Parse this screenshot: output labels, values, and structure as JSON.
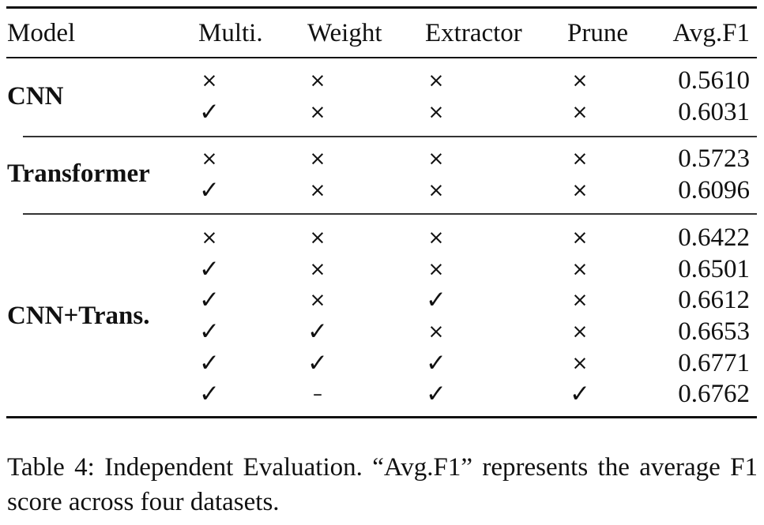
{
  "table": {
    "headers": {
      "model": "Model",
      "multi": "Multi.",
      "weight": "Weight",
      "extractor": "Extractor",
      "prune": "Prune",
      "avg_f1": "Avg.F1"
    },
    "groups": [
      {
        "model": "CNN",
        "rows": [
          {
            "multi": "×",
            "weight": "×",
            "extractor": "×",
            "prune": "×",
            "avg_f1": "0.5610"
          },
          {
            "multi": "✓",
            "weight": "×",
            "extractor": "×",
            "prune": "×",
            "avg_f1": "0.6031"
          }
        ]
      },
      {
        "model": "Transformer",
        "rows": [
          {
            "multi": "×",
            "weight": "×",
            "extractor": "×",
            "prune": "×",
            "avg_f1": "0.5723"
          },
          {
            "multi": "✓",
            "weight": "×",
            "extractor": "×",
            "prune": "×",
            "avg_f1": "0.6096"
          }
        ]
      },
      {
        "model": "CNN+Trans.",
        "rows": [
          {
            "multi": "×",
            "weight": "×",
            "extractor": "×",
            "prune": "×",
            "avg_f1": "0.6422"
          },
          {
            "multi": "✓",
            "weight": "×",
            "extractor": "×",
            "prune": "×",
            "avg_f1": "0.6501"
          },
          {
            "multi": "✓",
            "weight": "×",
            "extractor": "✓",
            "prune": "×",
            "avg_f1": "0.6612"
          },
          {
            "multi": "✓",
            "weight": "✓",
            "extractor": "×",
            "prune": "×",
            "avg_f1": "0.6653"
          },
          {
            "multi": "✓",
            "weight": "✓",
            "extractor": "✓",
            "prune": "×",
            "avg_f1": "0.6771"
          },
          {
            "multi": "✓",
            "weight": "–",
            "extractor": "✓",
            "prune": "✓",
            "avg_f1": "0.6762"
          }
        ]
      }
    ]
  },
  "caption": "Table 4: Independent Evaluation. “Avg.F1” represents the average F1 score across four datasets."
}
